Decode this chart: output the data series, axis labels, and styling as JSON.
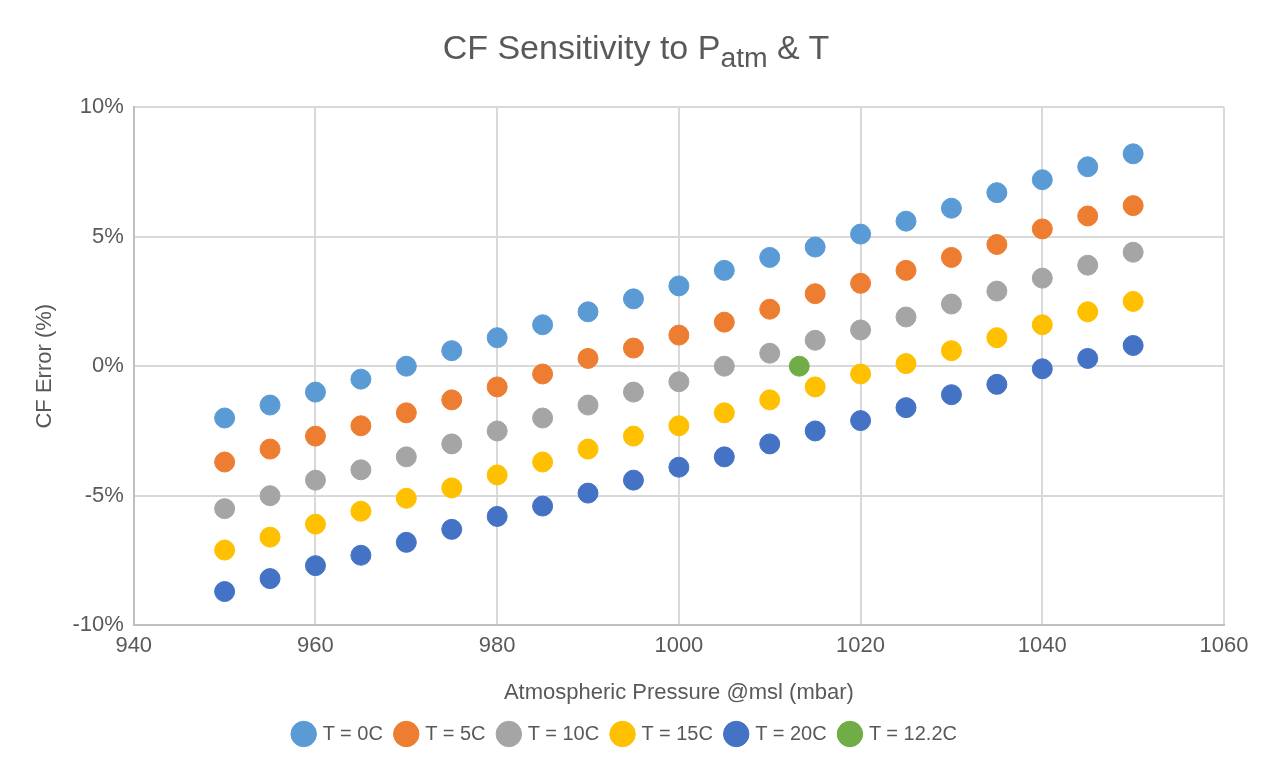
{
  "chart_data": {
    "type": "scatter",
    "title": "CF Sensitivity to P$_{atm}$ & T",
    "xlabel": "Atmospheric Pressure @msl (mbar)",
    "ylabel": "CF Error (%)",
    "x": [
      950,
      955,
      960,
      965,
      970,
      975,
      980,
      985,
      990,
      995,
      1000,
      1005,
      1010,
      1015,
      1020,
      1025,
      1030,
      1035,
      1040,
      1045,
      1050
    ],
    "series": [
      {
        "name": "T = 0C",
        "color": "#5b9bd5",
        "values": [
          -2.0,
          -1.5,
          -1.0,
          -0.5,
          0.0,
          0.6,
          1.1,
          1.6,
          2.1,
          2.6,
          3.1,
          3.7,
          4.2,
          4.6,
          5.1,
          5.6,
          6.1,
          6.7,
          7.2,
          7.7,
          8.2
        ]
      },
      {
        "name": "T = 5C",
        "color": "#ed7d31",
        "values": [
          -3.7,
          -3.2,
          -2.7,
          -2.3,
          -1.8,
          -1.3,
          -0.8,
          -0.3,
          0.3,
          0.7,
          1.2,
          1.7,
          2.2,
          2.8,
          3.2,
          3.7,
          4.2,
          4.7,
          5.3,
          5.8,
          6.2
        ]
      },
      {
        "name": "T = 10C",
        "color": "#a5a5a5",
        "values": [
          -5.5,
          -5.0,
          -4.4,
          -4.0,
          -3.5,
          -3.0,
          -2.5,
          -2.0,
          -1.5,
          -1.0,
          -0.6,
          0.0,
          0.5,
          1.0,
          1.4,
          1.9,
          2.4,
          2.9,
          3.4,
          3.9,
          4.4
        ]
      },
      {
        "name": "T = 15C",
        "color": "#ffc000",
        "values": [
          -7.1,
          -6.6,
          -6.1,
          -5.6,
          -5.1,
          -4.7,
          -4.2,
          -3.7,
          -3.2,
          -2.7,
          -2.3,
          -1.8,
          -1.3,
          -0.8,
          -0.3,
          0.1,
          0.6,
          1.1,
          1.6,
          2.1,
          2.5
        ]
      },
      {
        "name": "T = 20C",
        "color": "#4472c4",
        "values": [
          -8.7,
          -8.2,
          -7.7,
          -7.3,
          -6.8,
          -6.3,
          -5.8,
          -5.4,
          -4.9,
          -4.4,
          -3.9,
          -3.5,
          -3.0,
          -2.5,
          -2.1,
          -1.6,
          -1.1,
          -0.7,
          -0.1,
          0.3,
          0.8
        ]
      },
      {
        "name": "T = 12.2C",
        "color": "#70ad47",
        "x": [
          1013.25
        ],
        "values": [
          0.0
        ]
      }
    ],
    "xlim": [
      940,
      1060
    ],
    "xticks": [
      940,
      960,
      980,
      1000,
      1020,
      1040,
      1060
    ],
    "ylim": [
      -10,
      10
    ],
    "yticks": [
      {
        "value": -10,
        "label": "-10%"
      },
      {
        "value": -5,
        "label": "-5%"
      },
      {
        "value": 0,
        "label": "0%"
      },
      {
        "value": 5,
        "label": "5%"
      },
      {
        "value": 10,
        "label": "10%"
      }
    ],
    "grid": true,
    "legend": "bottom",
    "marker": "circle"
  }
}
